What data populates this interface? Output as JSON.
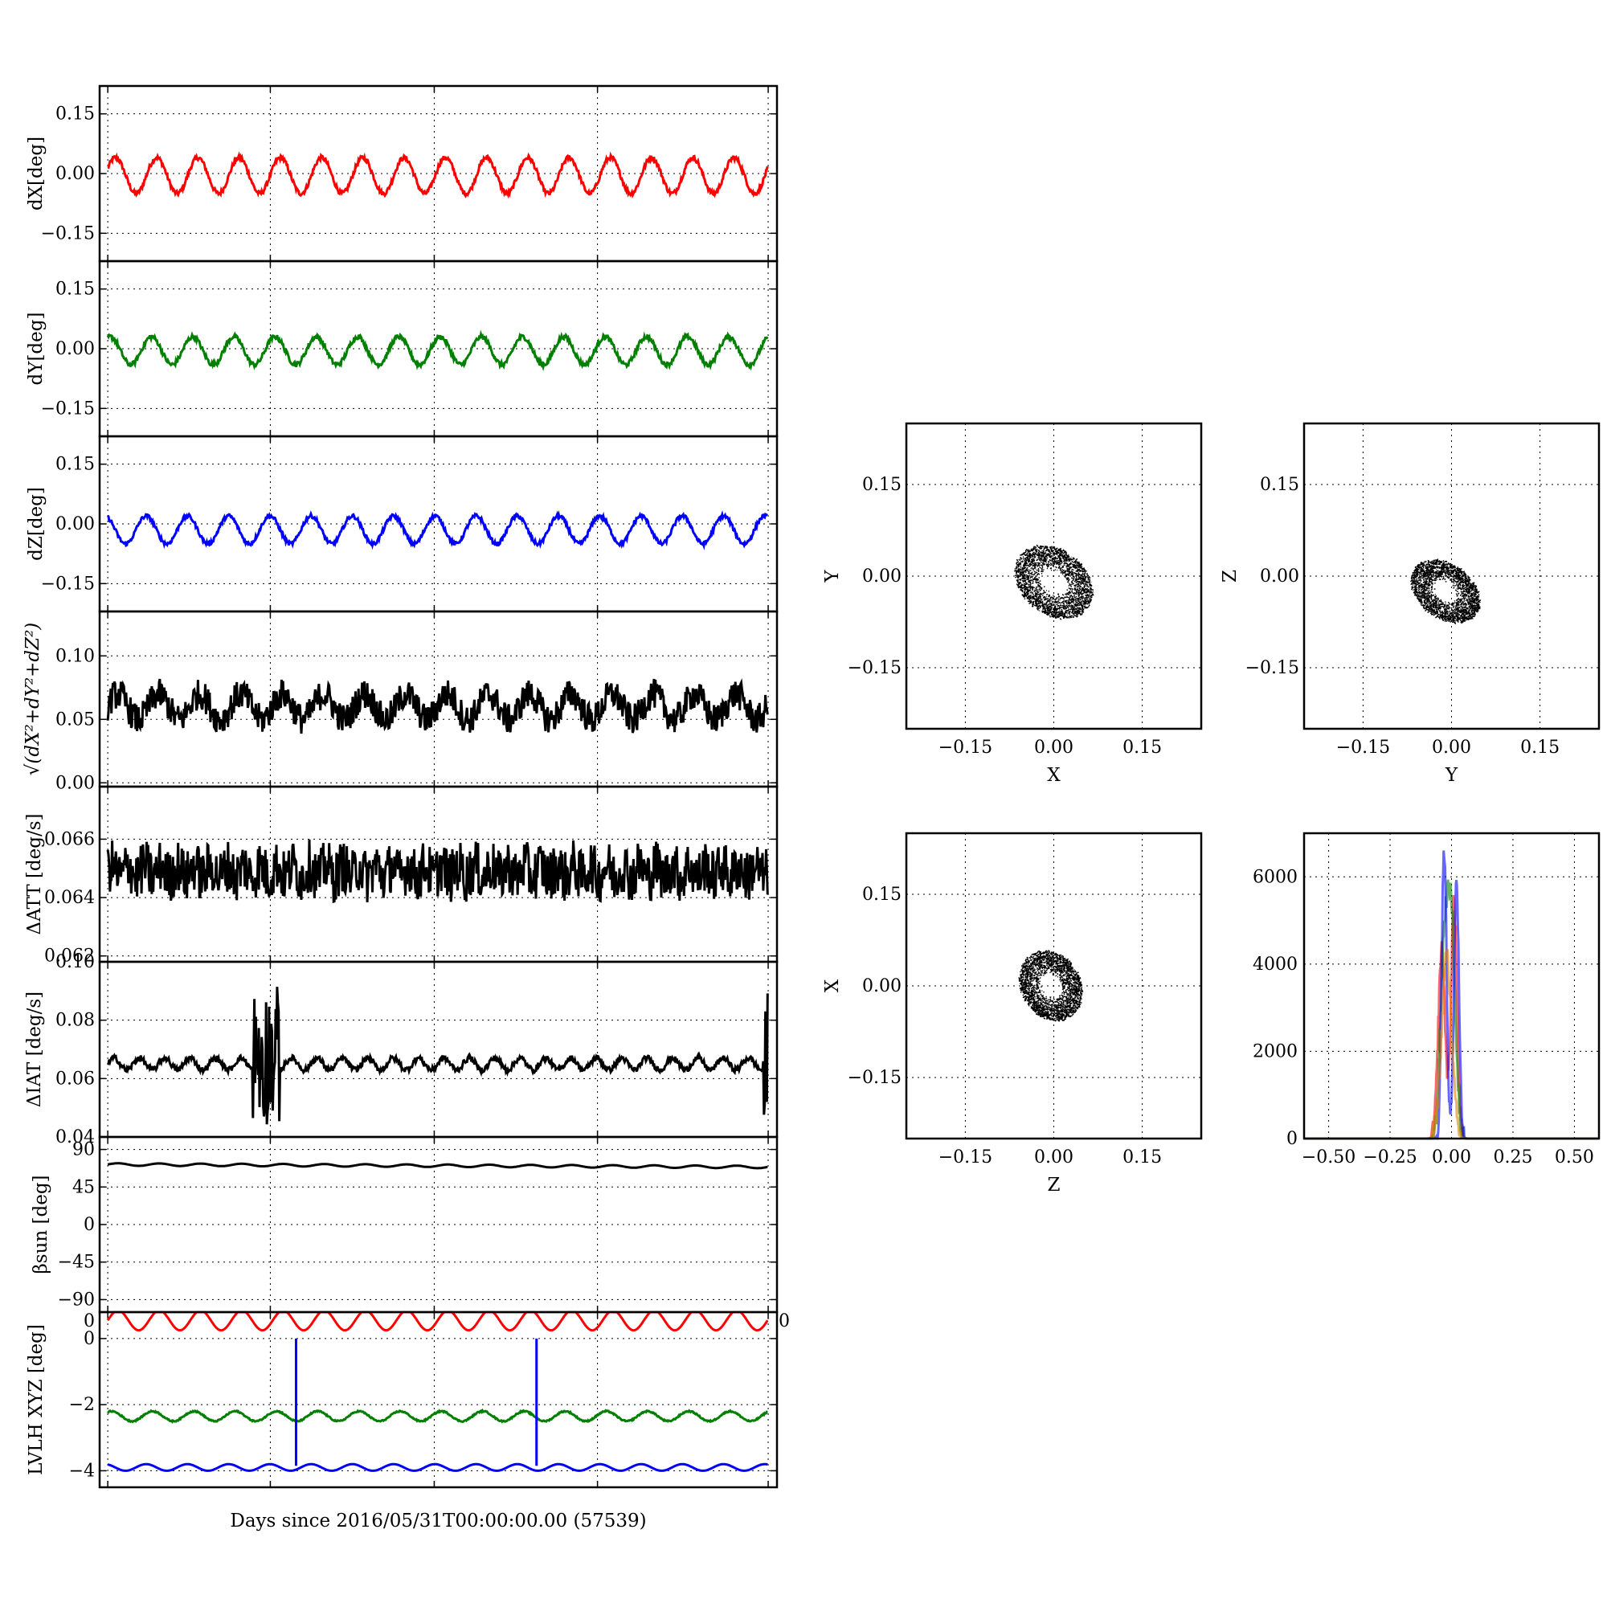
{
  "figure": {
    "xlabel": "Days since 2016/05/31T00:00:00.00 (57539)"
  },
  "chart_data": [
    {
      "id": "dx",
      "type": "line",
      "ylabel": "dX[deg]",
      "ylim": [
        -0.22,
        0.22
      ],
      "yticks": [
        -0.15,
        0.0,
        0.15
      ],
      "ytick_labels": [
        "−0.15",
        "0.00",
        "0.15"
      ],
      "grid": true,
      "xticks_labeled": false,
      "series": [
        {
          "color": "#ff0000",
          "offset": -0.005,
          "amp": 0.045,
          "cycles": 16,
          "noise": 0.006,
          "phase": 0.4
        }
      ]
    },
    {
      "id": "dy",
      "type": "line",
      "ylabel": "dY[deg]",
      "ylim": [
        -0.22,
        0.22
      ],
      "yticks": [
        -0.15,
        0.0,
        0.15
      ],
      "ytick_labels": [
        "−0.15",
        "0.00",
        "0.15"
      ],
      "grid": true,
      "xticks_labeled": false,
      "series": [
        {
          "color": "#008000",
          "offset": -0.005,
          "amp": 0.035,
          "cycles": 16,
          "noise": 0.006,
          "phase": 1.2
        }
      ]
    },
    {
      "id": "dz",
      "type": "line",
      "ylabel": "dZ[deg]",
      "ylim": [
        -0.22,
        0.22
      ],
      "yticks": [
        -0.15,
        0.0,
        0.15
      ],
      "ytick_labels": [
        "−0.15",
        "0.00",
        "0.15"
      ],
      "grid": true,
      "xticks_labeled": false,
      "series": [
        {
          "color": "#0000ff",
          "offset": -0.015,
          "amp": 0.035,
          "cycles": 16,
          "noise": 0.005,
          "phase": 2.0
        }
      ]
    },
    {
      "id": "norm",
      "type": "line",
      "ylabel": "√(dX²+dY²+dZ²)",
      "ylim": [
        -0.003,
        0.135
      ],
      "yticks": [
        0.0,
        0.05,
        0.1
      ],
      "ytick_labels": [
        "0.00",
        "0.05",
        "0.10"
      ],
      "grid": true,
      "xticks_labeled": false,
      "series": [
        {
          "color": "#000000",
          "offset": 0.06,
          "amp": 0.01,
          "cycles": 16,
          "noise": 0.012,
          "phase": 0.1
        }
      ]
    },
    {
      "id": "datt",
      "type": "line",
      "ylabel": "ΔATT [deg/s]",
      "ylim": [
        0.0618,
        0.0678
      ],
      "yticks": [
        0.062,
        0.064,
        0.066
      ],
      "ytick_labels": [
        "0.062",
        "0.064",
        "0.066"
      ],
      "grid": true,
      "xticks_labeled": false,
      "series": [
        {
          "color": "#000000",
          "offset": 0.0649,
          "amp": 0.0002,
          "cycles": 40,
          "noise": 0.0009,
          "phase": 0.0
        }
      ]
    },
    {
      "id": "diat",
      "type": "line",
      "ylabel": "ΔIAT [deg/s]",
      "ylim": [
        0.04,
        0.1
      ],
      "yticks": [
        0.04,
        0.06,
        0.08,
        0.1
      ],
      "ytick_labels": [
        "0.04",
        "0.06",
        "0.08",
        "0.10"
      ],
      "grid": true,
      "xticks_labeled": false,
      "series": [
        {
          "color": "#000000",
          "offset": 0.065,
          "amp": 0.002,
          "cycles": 26,
          "noise": 0.001,
          "phase": 0.0,
          "bursts": [
            [
              0.22,
              0.26
            ],
            [
              0.993,
              1.0
            ]
          ],
          "burst_range": [
            0.044,
            0.092
          ]
        }
      ]
    },
    {
      "id": "beta",
      "type": "line",
      "ylabel": "βsun [deg]",
      "ylim": [
        -105,
        105
      ],
      "yticks": [
        -90,
        -45,
        0,
        45,
        90
      ],
      "ytick_labels": [
        "−90",
        "−45",
        "0",
        "45",
        "90"
      ],
      "grid": true,
      "xticks_labeled": false,
      "series": [
        {
          "color": "#000000",
          "offset": 72,
          "amp": 1.5,
          "cycles": 16,
          "noise": 0.0,
          "phase": 0.0,
          "trend": -3
        }
      ]
    },
    {
      "id": "lvlh",
      "type": "line",
      "ylabel": "LVLH XYZ [deg]",
      "ylim": [
        -4.5,
        0.8
      ],
      "yticks": [
        -4,
        -2,
        0
      ],
      "ytick_labels": [
        "−4",
        "−2",
        "0"
      ],
      "grid": true,
      "xticks_labeled": false,
      "series": [
        {
          "color": "#ff0000",
          "offset": 0.55,
          "amp": 0.3,
          "cycles": 16,
          "noise": 0.0,
          "phase": 0.0
        },
        {
          "color": "#008000",
          "offset": -2.35,
          "amp": 0.15,
          "cycles": 16,
          "noise": 0.02,
          "phase": 1.0
        },
        {
          "color": "#0000ff",
          "offset": -3.9,
          "amp": 0.1,
          "cycles": 16,
          "noise": 0.0,
          "phase": 2.0
        }
      ],
      "spikes": [
        {
          "x": 0.29,
          "color": "#0000ff",
          "from": 0.0,
          "to": -3.85
        },
        {
          "x": 0.645,
          "color": "#0000ff",
          "from": 0.0,
          "to": -3.85
        }
      ],
      "corner_labels": [
        "0",
        "0"
      ]
    },
    {
      "id": "xy",
      "type": "scatter",
      "xlabel": "X",
      "ylabel": "Y",
      "xlim": [
        -0.25,
        0.25
      ],
      "ylim": [
        -0.25,
        0.25
      ],
      "ticks": [
        -0.15,
        0.0,
        0.15
      ],
      "tick_labels": [
        "−0.15",
        "0.00",
        "0.15"
      ],
      "grid": true,
      "cloud": {
        "cx": 0.0,
        "cy": -0.01,
        "rx": 0.065,
        "ry": 0.048,
        "tilt": -35,
        "color": "#000000"
      }
    },
    {
      "id": "yz",
      "type": "scatter",
      "xlabel": "Y",
      "ylabel": "Z",
      "xlim": [
        -0.25,
        0.25
      ],
      "ylim": [
        -0.25,
        0.25
      ],
      "ticks": [
        -0.15,
        0.0,
        0.15
      ],
      "tick_labels": [
        "−0.15",
        "0.00",
        "0.15"
      ],
      "grid": true,
      "cloud": {
        "cx": -0.01,
        "cy": -0.025,
        "rx": 0.058,
        "ry": 0.04,
        "tilt": -35,
        "color": "#000000"
      }
    },
    {
      "id": "zx",
      "type": "scatter",
      "xlabel": "Z",
      "ylabel": "X",
      "xlim": [
        -0.25,
        0.25
      ],
      "ylim": [
        -0.25,
        0.25
      ],
      "ticks": [
        -0.15,
        0.0,
        0.15
      ],
      "tick_labels": [
        "−0.15",
        "0.00",
        "0.15"
      ],
      "grid": true,
      "cloud": {
        "cx": -0.005,
        "cy": 0.0,
        "rx": 0.055,
        "ry": 0.045,
        "tilt": -55,
        "color": "#000000"
      }
    },
    {
      "id": "hist",
      "type": "line",
      "xlim": [
        -0.6,
        0.6
      ],
      "ylim": [
        0,
        7000
      ],
      "xticks": [
        -0.5,
        -0.25,
        0.0,
        0.25,
        0.5
      ],
      "xtick_labels": [
        "−0.50",
        "−0.25",
        "0.00",
        "0.25",
        "0.50"
      ],
      "yticks": [
        0,
        2000,
        4000,
        6000
      ],
      "ytick_labels": [
        "0",
        "2000",
        "4000",
        "6000"
      ],
      "grid": true,
      "series": [
        {
          "name": "",
          "color": "#ff0000",
          "peaks": [
            [
              -0.04,
              4300,
              0.014
            ],
            [
              0.01,
              5400,
              0.012
            ]
          ]
        },
        {
          "name": "",
          "color": "#008000",
          "peaks": [
            [
              -0.03,
              4100,
              0.016
            ],
            [
              0.0,
              4700,
              0.016
            ]
          ]
        },
        {
          "name": "",
          "color": "#0000ff",
          "peaks": [
            [
              -0.03,
              6700,
              0.01
            ],
            [
              0.02,
              5900,
              0.01
            ]
          ]
        },
        {
          "name": "",
          "color": "#e08000",
          "peaks": [
            [
              -0.02,
              4200,
              0.02
            ]
          ]
        }
      ]
    }
  ]
}
